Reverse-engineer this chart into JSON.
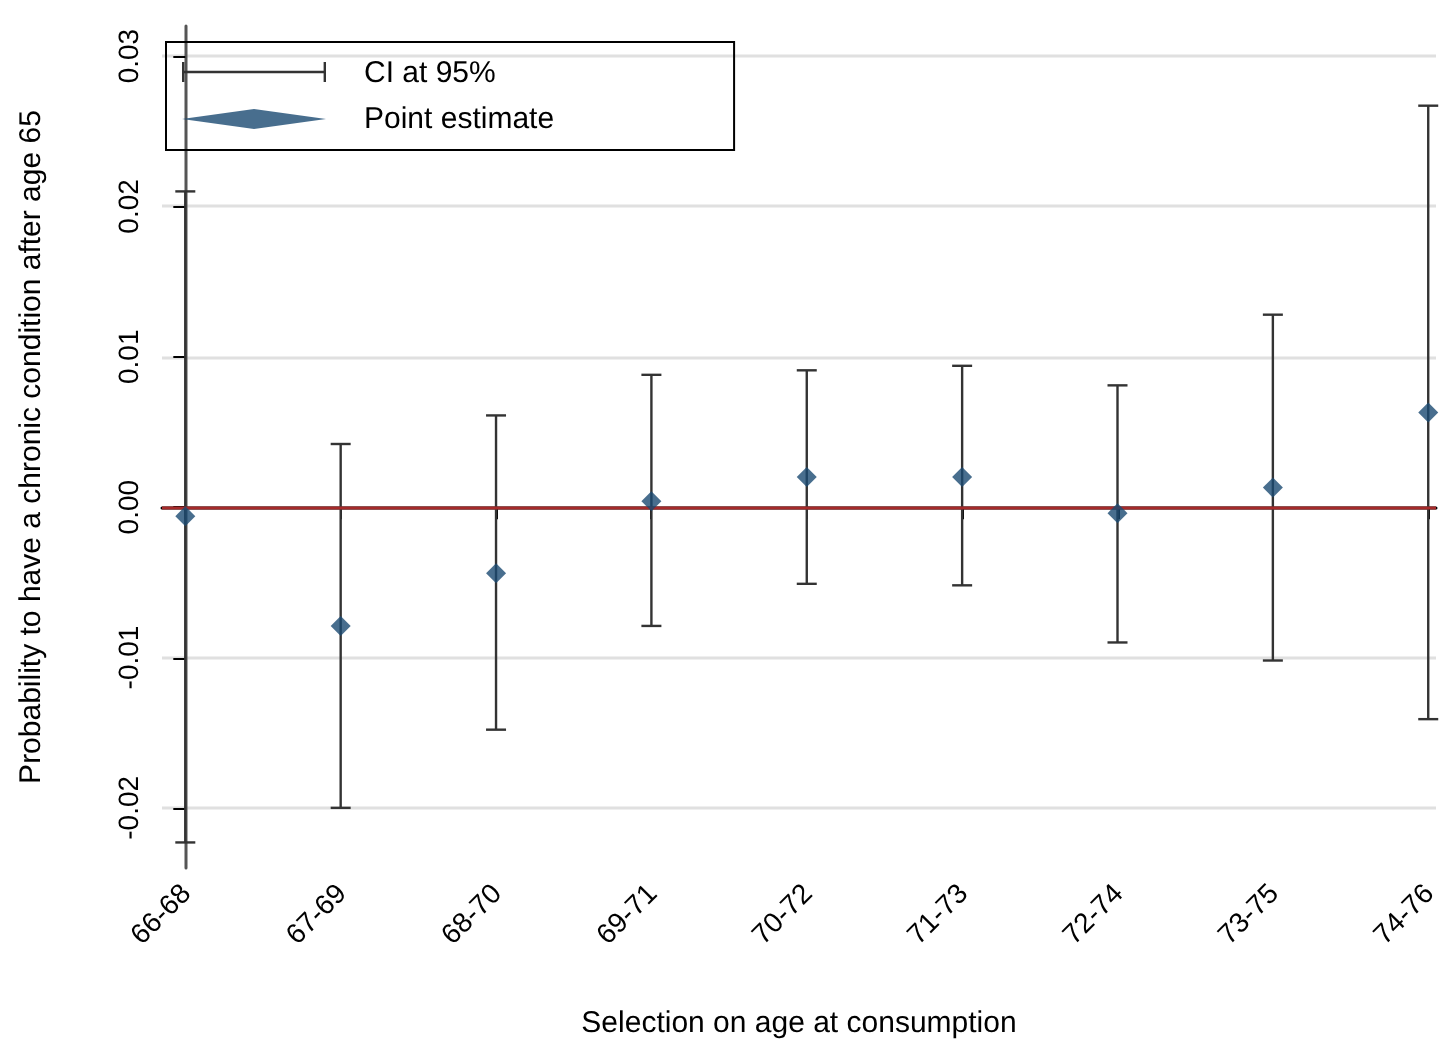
{
  "chart_data": {
    "type": "scatter",
    "xlabel": "Selection on age at consumption",
    "ylabel": "Probability to have a chronic condition after age 65",
    "categories": [
      "66-68",
      "67-69",
      "68-70",
      "69-71",
      "70-72",
      "71-73",
      "72-74",
      "73-75",
      "74-76"
    ],
    "series": [
      {
        "name": "Point estimate",
        "color": "#1a4a72",
        "values": [
          -0.0006,
          -0.0079,
          -0.0044,
          0.0004,
          0.002,
          0.002,
          -0.0004,
          0.0013,
          0.0063
        ],
        "errors": [
          [
            -0.0223,
            0.021
          ],
          [
            -0.02,
            0.0042
          ],
          [
            -0.0148,
            0.0061
          ],
          [
            -0.0079,
            0.0088
          ],
          [
            -0.0051,
            0.0091
          ],
          [
            -0.0052,
            0.0094
          ],
          [
            -0.009,
            0.0081
          ],
          [
            -0.0102,
            0.0128
          ],
          [
            -0.0141,
            0.0267
          ]
        ]
      }
    ],
    "annotations": [
      "CI at 95%"
    ],
    "ylim": [
      -0.024,
      0.032
    ],
    "yticks": [
      -0.02,
      -0.01,
      {
        "value": 0,
        "label": "0.00"
      },
      0.01,
      0.02,
      0.03
    ],
    "ref_lines": [
      {
        "axis": "y",
        "value": 0,
        "color": "#a52a2a"
      }
    ],
    "grid": "y",
    "legend": "top left",
    "marker": "diamond"
  }
}
